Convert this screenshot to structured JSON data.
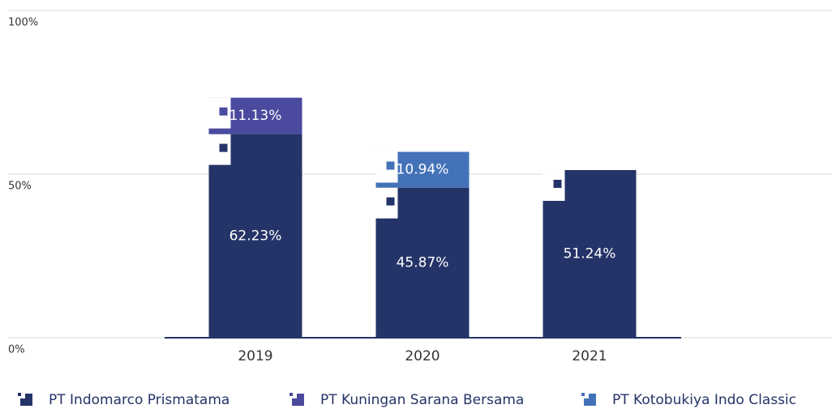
{
  "chart_data": {
    "type": "stacked_bar",
    "categories": [
      "2019",
      "2020",
      "2021"
    ],
    "series": [
      {
        "name": "PT Indomarco Prismatama",
        "color": "#253468",
        "values": [
          62.23,
          45.87,
          51.24
        ],
        "value_labels": [
          "62.23%",
          "45.87%",
          "51.24%"
        ]
      },
      {
        "name": "PT Kuningan Sarana Bersama",
        "color": "#4a4a9e",
        "values": [
          11.13,
          null,
          null
        ],
        "value_labels": [
          "11.13%",
          null,
          null
        ]
      },
      {
        "name": "PT Kotobukiya Indo Classic",
        "color": "#4472b8",
        "values": [
          null,
          10.94,
          null
        ],
        "value_labels": [
          null,
          "10.94%",
          null
        ]
      }
    ],
    "ylim": [
      0,
      100
    ],
    "yticks": [
      {
        "value": 0,
        "label": "0%"
      },
      {
        "value": 50,
        "label": "50%"
      },
      {
        "value": 100,
        "label": "100%"
      }
    ],
    "grid": true,
    "legend": "bottom"
  }
}
